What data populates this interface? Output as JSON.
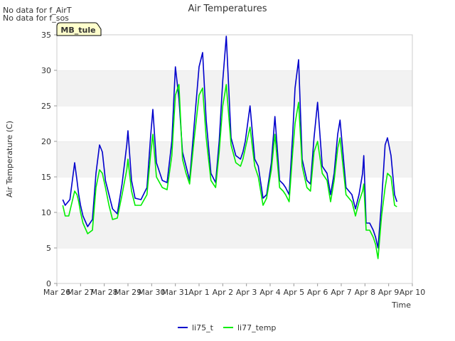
{
  "notes": [
    "No data for f_AirT",
    "No data for f_sos"
  ],
  "badge": {
    "label": "MB_tule",
    "bg": "#ffffcc",
    "fg": "#8b0000"
  },
  "chart_data": {
    "type": "line",
    "title": "Air Temperatures",
    "xlabel": "Time",
    "ylabel": "Air Temperature (C)",
    "ylim": [
      0,
      35
    ],
    "yticks": [
      0,
      5,
      10,
      15,
      20,
      25,
      30,
      35
    ],
    "xlim": [
      0,
      15
    ],
    "xticks": [
      {
        "v": 0,
        "label": "Mar 26"
      },
      {
        "v": 1,
        "label": "Mar 27"
      },
      {
        "v": 2,
        "label": "Mar 28"
      },
      {
        "v": 3,
        "label": "Mar 29"
      },
      {
        "v": 4,
        "label": "Mar 30"
      },
      {
        "v": 5,
        "label": "Mar 31"
      },
      {
        "v": 6,
        "label": "Apr 1"
      },
      {
        "v": 7,
        "label": "Apr 2"
      },
      {
        "v": 8,
        "label": "Apr 3"
      },
      {
        "v": 9,
        "label": "Apr 4"
      },
      {
        "v": 10,
        "label": "Apr 5"
      },
      {
        "v": 11,
        "label": "Apr 6"
      },
      {
        "v": 12,
        "label": "Apr 7"
      },
      {
        "v": 13,
        "label": "Apr 8"
      },
      {
        "v": 14,
        "label": "Apr 9"
      },
      {
        "v": 15,
        "label": "Apr 10"
      }
    ],
    "grid": "horizontal-bands",
    "legend": "bottom-center",
    "series": [
      {
        "name": "li75_t",
        "color": "#0000cc",
        "x": [
          0.25,
          0.35,
          0.55,
          0.75,
          0.85,
          0.92,
          1.0,
          1.1,
          1.3,
          1.5,
          1.65,
          1.8,
          1.92,
          2.05,
          2.2,
          2.35,
          2.55,
          2.75,
          2.95,
          3.0,
          3.15,
          3.3,
          3.55,
          3.8,
          3.95,
          4.05,
          4.2,
          4.45,
          4.65,
          4.85,
          5.0,
          5.15,
          5.3,
          5.45,
          5.6,
          5.8,
          6.0,
          6.15,
          6.3,
          6.5,
          6.7,
          6.85,
          7.0,
          7.15,
          7.35,
          7.55,
          7.75,
          7.85,
          7.95,
          8.15,
          8.35,
          8.5,
          8.7,
          8.85,
          9.05,
          9.2,
          9.4,
          9.55,
          9.65,
          9.8,
          9.95,
          10.05,
          10.2,
          10.35,
          10.55,
          10.7,
          10.85,
          11.0,
          11.2,
          11.4,
          11.55,
          11.7,
          11.85,
          11.95,
          12.2,
          12.45,
          12.6,
          12.75,
          12.9,
          12.95,
          13.05,
          13.2,
          13.35,
          13.45,
          13.55,
          13.7,
          13.85,
          13.95,
          14.1,
          14.25,
          14.35
        ],
        "y": [
          11.8,
          11.0,
          11.8,
          17.0,
          14.5,
          12.5,
          11.0,
          9.5,
          8.0,
          9.0,
          15.5,
          19.5,
          18.5,
          14.5,
          12.5,
          10.5,
          9.8,
          14.0,
          19.5,
          21.5,
          14.5,
          12.0,
          11.8,
          13.5,
          20.5,
          24.5,
          17.0,
          14.5,
          14.2,
          20.0,
          30.5,
          26.0,
          18.5,
          16.5,
          14.5,
          22.5,
          30.5,
          32.5,
          23.0,
          15.5,
          14.2,
          20.0,
          28.5,
          34.8,
          20.5,
          18.0,
          17.5,
          18.5,
          20.0,
          25.0,
          17.5,
          16.5,
          12.0,
          12.5,
          17.0,
          23.5,
          14.5,
          14.0,
          13.5,
          12.5,
          21.0,
          27.5,
          31.5,
          17.5,
          14.5,
          14.0,
          20.5,
          25.5,
          16.5,
          15.5,
          12.5,
          15.5,
          21.0,
          23.0,
          13.5,
          12.5,
          10.5,
          12.5,
          15.5,
          18.0,
          8.5,
          8.5,
          7.5,
          6.5,
          5.0,
          11.5,
          19.5,
          20.5,
          18.0,
          12.5,
          11.5
        ]
      },
      {
        "name": "li77_temp",
        "color": "#00ee00",
        "x": [
          0.25,
          0.35,
          0.5,
          0.75,
          0.85,
          0.92,
          1.0,
          1.1,
          1.3,
          1.5,
          1.65,
          1.8,
          1.92,
          2.05,
          2.2,
          2.35,
          2.55,
          2.75,
          2.95,
          3.0,
          3.15,
          3.3,
          3.55,
          3.8,
          3.95,
          4.05,
          4.2,
          4.45,
          4.65,
          4.85,
          5.0,
          5.15,
          5.3,
          5.45,
          5.6,
          5.8,
          6.0,
          6.15,
          6.3,
          6.5,
          6.7,
          6.85,
          7.0,
          7.15,
          7.35,
          7.55,
          7.75,
          7.85,
          7.95,
          8.15,
          8.35,
          8.5,
          8.7,
          8.85,
          9.05,
          9.2,
          9.4,
          9.55,
          9.65,
          9.8,
          9.95,
          10.05,
          10.2,
          10.35,
          10.55,
          10.7,
          10.85,
          11.0,
          11.2,
          11.4,
          11.55,
          11.7,
          11.85,
          11.95,
          12.2,
          12.45,
          12.6,
          12.75,
          12.9,
          12.95,
          13.05,
          13.2,
          13.35,
          13.45,
          13.55,
          13.7,
          13.85,
          13.95,
          14.1,
          14.25,
          14.35
        ],
        "y": [
          11.0,
          9.5,
          9.5,
          13.0,
          12.5,
          11.5,
          10.0,
          8.5,
          7.0,
          7.5,
          13.5,
          16.0,
          15.5,
          13.5,
          11.0,
          9.0,
          9.2,
          12.5,
          16.0,
          17.5,
          13.0,
          11.0,
          11.0,
          12.5,
          18.0,
          21.0,
          15.0,
          13.5,
          13.2,
          18.0,
          26.5,
          28.0,
          17.5,
          15.5,
          14.0,
          20.5,
          26.5,
          27.5,
          20.5,
          14.5,
          13.5,
          18.5,
          25.0,
          28.0,
          19.5,
          17.0,
          16.5,
          17.5,
          19.0,
          22.0,
          16.5,
          15.0,
          11.0,
          12.0,
          16.0,
          21.0,
          13.5,
          13.0,
          12.5,
          11.5,
          18.5,
          22.5,
          25.5,
          16.5,
          13.5,
          13.0,
          18.5,
          20.0,
          15.5,
          14.5,
          11.5,
          14.5,
          19.0,
          20.5,
          12.5,
          11.5,
          9.5,
          11.5,
          13.0,
          14.0,
          7.5,
          7.5,
          6.5,
          5.5,
          3.5,
          9.5,
          13.5,
          15.5,
          15.0,
          11.0,
          10.8
        ]
      }
    ]
  }
}
